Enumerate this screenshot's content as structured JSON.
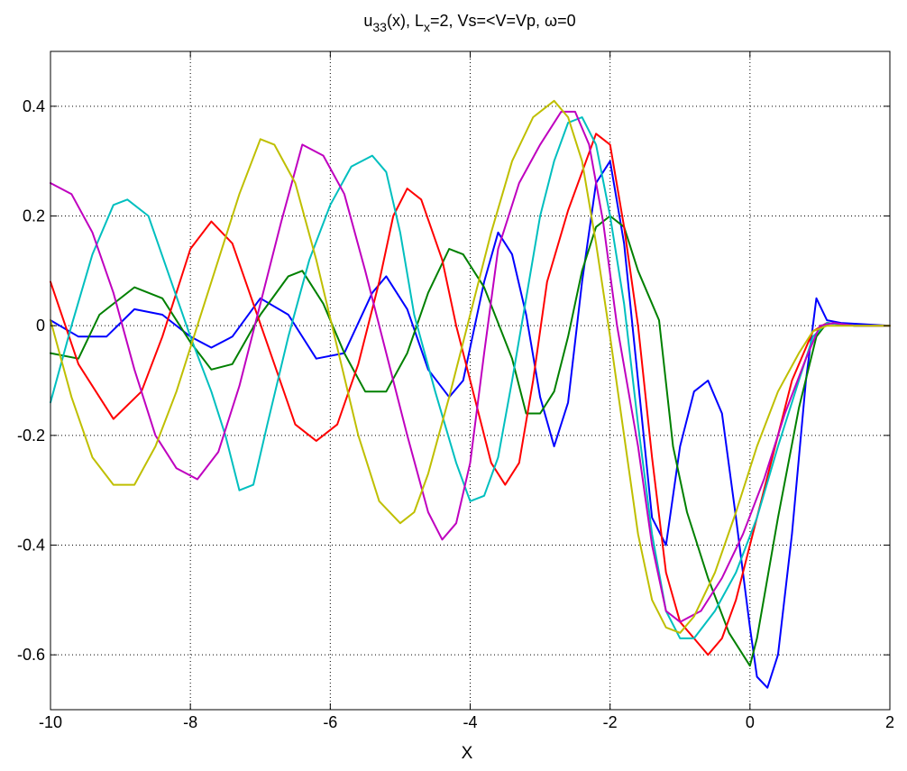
{
  "chart_data": {
    "type": "line",
    "title_parts": {
      "u": "u",
      "u_sub": "33",
      "mid": "(x), L",
      "l_sub": "x",
      "rest": "=2,  Vs=<V=Vp, ω=0"
    },
    "xlabel": "X",
    "ylabel": "",
    "xlim": [
      -10,
      2
    ],
    "ylim": [
      -0.7,
      0.5
    ],
    "xticks": [
      -10,
      -8,
      -6,
      -4,
      -2,
      0,
      2
    ],
    "xtick_labels": [
      "-10",
      "-8",
      "-6",
      "-4",
      "-2",
      "0",
      "2"
    ],
    "yticks": [
      -0.6,
      -0.4,
      -0.2,
      0,
      0.2,
      0.4
    ],
    "ytick_labels": [
      "-0.6",
      "-0.4",
      "-0.2",
      "0",
      "0.2",
      "0.4"
    ],
    "grid": true,
    "series": [
      {
        "color": "#0000FF",
        "points": [
          [
            -10,
            0.01
          ],
          [
            -9.6,
            -0.02
          ],
          [
            -9.2,
            -0.02
          ],
          [
            -8.8,
            0.03
          ],
          [
            -8.4,
            0.02
          ],
          [
            -8.0,
            -0.02
          ],
          [
            -7.7,
            -0.04
          ],
          [
            -7.4,
            -0.02
          ],
          [
            -7.0,
            0.05
          ],
          [
            -6.6,
            0.02
          ],
          [
            -6.2,
            -0.06
          ],
          [
            -5.8,
            -0.05
          ],
          [
            -5.4,
            0.06
          ],
          [
            -5.2,
            0.09
          ],
          [
            -4.9,
            0.03
          ],
          [
            -4.6,
            -0.08
          ],
          [
            -4.3,
            -0.13
          ],
          [
            -4.1,
            -0.1
          ],
          [
            -3.8,
            0.08
          ],
          [
            -3.6,
            0.17
          ],
          [
            -3.4,
            0.13
          ],
          [
            -3.2,
            0.02
          ],
          [
            -3.0,
            -0.13
          ],
          [
            -2.8,
            -0.22
          ],
          [
            -2.6,
            -0.14
          ],
          [
            -2.4,
            0.08
          ],
          [
            -2.2,
            0.26
          ],
          [
            -2.0,
            0.3
          ],
          [
            -1.8,
            0.15
          ],
          [
            -1.6,
            -0.1
          ],
          [
            -1.4,
            -0.35
          ],
          [
            -1.2,
            -0.4
          ],
          [
            -1.0,
            -0.22
          ],
          [
            -0.8,
            -0.12
          ],
          [
            -0.6,
            -0.1
          ],
          [
            -0.4,
            -0.16
          ],
          [
            -0.2,
            -0.35
          ],
          [
            0.0,
            -0.55
          ],
          [
            0.1,
            -0.64
          ],
          [
            0.25,
            -0.66
          ],
          [
            0.4,
            -0.6
          ],
          [
            0.6,
            -0.38
          ],
          [
            0.8,
            -0.1
          ],
          [
            0.95,
            0.05
          ],
          [
            1.1,
            0.01
          ],
          [
            1.3,
            0.005
          ],
          [
            2.0,
            0.0
          ]
        ]
      },
      {
        "color": "#008000",
        "points": [
          [
            -10,
            -0.05
          ],
          [
            -9.6,
            -0.06
          ],
          [
            -9.3,
            0.02
          ],
          [
            -8.8,
            0.07
          ],
          [
            -8.4,
            0.05
          ],
          [
            -8.0,
            -0.03
          ],
          [
            -7.7,
            -0.08
          ],
          [
            -7.4,
            -0.07
          ],
          [
            -7.0,
            0.02
          ],
          [
            -6.6,
            0.09
          ],
          [
            -6.4,
            0.1
          ],
          [
            -6.1,
            0.04
          ],
          [
            -5.8,
            -0.05
          ],
          [
            -5.5,
            -0.12
          ],
          [
            -5.2,
            -0.12
          ],
          [
            -4.9,
            -0.05
          ],
          [
            -4.6,
            0.06
          ],
          [
            -4.3,
            0.14
          ],
          [
            -4.1,
            0.13
          ],
          [
            -3.8,
            0.07
          ],
          [
            -3.4,
            -0.06
          ],
          [
            -3.2,
            -0.16
          ],
          [
            -3.0,
            -0.16
          ],
          [
            -2.8,
            -0.12
          ],
          [
            -2.6,
            -0.02
          ],
          [
            -2.4,
            0.1
          ],
          [
            -2.2,
            0.18
          ],
          [
            -2.0,
            0.2
          ],
          [
            -1.8,
            0.18
          ],
          [
            -1.6,
            0.1
          ],
          [
            -1.3,
            0.01
          ],
          [
            -1.1,
            -0.22
          ],
          [
            -0.9,
            -0.34
          ],
          [
            -0.6,
            -0.46
          ],
          [
            -0.3,
            -0.56
          ],
          [
            -0.1,
            -0.6
          ],
          [
            0.0,
            -0.62
          ],
          [
            0.1,
            -0.57
          ],
          [
            0.4,
            -0.35
          ],
          [
            0.7,
            -0.15
          ],
          [
            0.95,
            -0.02
          ],
          [
            1.1,
            0.005
          ],
          [
            1.5,
            0.0
          ],
          [
            2.0,
            0.0
          ]
        ]
      },
      {
        "color": "#FF0000",
        "points": [
          [
            -10,
            0.08
          ],
          [
            -9.6,
            -0.07
          ],
          [
            -9.1,
            -0.17
          ],
          [
            -8.7,
            -0.12
          ],
          [
            -8.4,
            -0.02
          ],
          [
            -8.0,
            0.14
          ],
          [
            -7.7,
            0.19
          ],
          [
            -7.4,
            0.15
          ],
          [
            -7.1,
            0.04
          ],
          [
            -6.8,
            -0.07
          ],
          [
            -6.5,
            -0.18
          ],
          [
            -6.2,
            -0.21
          ],
          [
            -5.9,
            -0.18
          ],
          [
            -5.6,
            -0.07
          ],
          [
            -5.3,
            0.08
          ],
          [
            -5.1,
            0.2
          ],
          [
            -4.9,
            0.25
          ],
          [
            -4.7,
            0.23
          ],
          [
            -4.4,
            0.12
          ],
          [
            -4.2,
            0.0
          ],
          [
            -3.9,
            -0.15
          ],
          [
            -3.7,
            -0.25
          ],
          [
            -3.5,
            -0.29
          ],
          [
            -3.3,
            -0.25
          ],
          [
            -3.1,
            -0.1
          ],
          [
            -2.9,
            0.08
          ],
          [
            -2.6,
            0.21
          ],
          [
            -2.4,
            0.28
          ],
          [
            -2.2,
            0.35
          ],
          [
            -2.0,
            0.33
          ],
          [
            -1.8,
            0.18
          ],
          [
            -1.6,
            0.0
          ],
          [
            -1.4,
            -0.24
          ],
          [
            -1.2,
            -0.45
          ],
          [
            -1.0,
            -0.54
          ],
          [
            -0.8,
            -0.57
          ],
          [
            -0.6,
            -0.6
          ],
          [
            -0.4,
            -0.57
          ],
          [
            -0.2,
            -0.5
          ],
          [
            0.0,
            -0.4
          ],
          [
            0.3,
            -0.25
          ],
          [
            0.6,
            -0.1
          ],
          [
            0.9,
            -0.01
          ],
          [
            1.1,
            0.005
          ],
          [
            1.5,
            0.0
          ],
          [
            2.0,
            0.0
          ]
        ]
      },
      {
        "color": "#00BFBF",
        "points": [
          [
            -10,
            -0.14
          ],
          [
            -9.7,
            0.0
          ],
          [
            -9.4,
            0.13
          ],
          [
            -9.1,
            0.22
          ],
          [
            -8.9,
            0.23
          ],
          [
            -8.6,
            0.2
          ],
          [
            -8.3,
            0.09
          ],
          [
            -8.0,
            -0.02
          ],
          [
            -7.7,
            -0.12
          ],
          [
            -7.5,
            -0.2
          ],
          [
            -7.3,
            -0.3
          ],
          [
            -7.1,
            -0.29
          ],
          [
            -6.9,
            -0.18
          ],
          [
            -6.6,
            -0.02
          ],
          [
            -6.3,
            0.12
          ],
          [
            -6.0,
            0.22
          ],
          [
            -5.7,
            0.29
          ],
          [
            -5.4,
            0.31
          ],
          [
            -5.2,
            0.28
          ],
          [
            -5.0,
            0.17
          ],
          [
            -4.8,
            0.02
          ],
          [
            -4.5,
            -0.12
          ],
          [
            -4.2,
            -0.25
          ],
          [
            -4.0,
            -0.32
          ],
          [
            -3.8,
            -0.31
          ],
          [
            -3.6,
            -0.24
          ],
          [
            -3.4,
            -0.1
          ],
          [
            -3.2,
            0.05
          ],
          [
            -3.0,
            0.2
          ],
          [
            -2.8,
            0.3
          ],
          [
            -2.6,
            0.37
          ],
          [
            -2.4,
            0.38
          ],
          [
            -2.2,
            0.33
          ],
          [
            -2.0,
            0.2
          ],
          [
            -1.8,
            0.04
          ],
          [
            -1.6,
            -0.18
          ],
          [
            -1.4,
            -0.38
          ],
          [
            -1.2,
            -0.52
          ],
          [
            -1.0,
            -0.57
          ],
          [
            -0.8,
            -0.57
          ],
          [
            -0.5,
            -0.52
          ],
          [
            -0.2,
            -0.45
          ],
          [
            0.1,
            -0.35
          ],
          [
            0.4,
            -0.22
          ],
          [
            0.7,
            -0.1
          ],
          [
            0.9,
            -0.02
          ],
          [
            1.1,
            0.005
          ],
          [
            1.5,
            0.0
          ],
          [
            2.0,
            0.0
          ]
        ]
      },
      {
        "color": "#BF00BF",
        "points": [
          [
            -10,
            0.26
          ],
          [
            -9.7,
            0.24
          ],
          [
            -9.4,
            0.17
          ],
          [
            -9.1,
            0.06
          ],
          [
            -8.8,
            -0.08
          ],
          [
            -8.5,
            -0.2
          ],
          [
            -8.2,
            -0.26
          ],
          [
            -7.9,
            -0.28
          ],
          [
            -7.6,
            -0.23
          ],
          [
            -7.3,
            -0.11
          ],
          [
            -7.0,
            0.04
          ],
          [
            -6.7,
            0.19
          ],
          [
            -6.4,
            0.33
          ],
          [
            -6.1,
            0.31
          ],
          [
            -5.8,
            0.24
          ],
          [
            -5.5,
            0.1
          ],
          [
            -5.2,
            -0.05
          ],
          [
            -4.9,
            -0.2
          ],
          [
            -4.6,
            -0.34
          ],
          [
            -4.4,
            -0.39
          ],
          [
            -4.2,
            -0.36
          ],
          [
            -4.0,
            -0.25
          ],
          [
            -3.8,
            -0.05
          ],
          [
            -3.6,
            0.14
          ],
          [
            -3.3,
            0.26
          ],
          [
            -3.0,
            0.33
          ],
          [
            -2.7,
            0.39
          ],
          [
            -2.5,
            0.39
          ],
          [
            -2.3,
            0.33
          ],
          [
            -2.1,
            0.19
          ],
          [
            -1.9,
            0.0
          ],
          [
            -1.6,
            -0.22
          ],
          [
            -1.4,
            -0.4
          ],
          [
            -1.2,
            -0.52
          ],
          [
            -1.0,
            -0.54
          ],
          [
            -0.7,
            -0.52
          ],
          [
            -0.4,
            -0.46
          ],
          [
            -0.1,
            -0.38
          ],
          [
            0.2,
            -0.28
          ],
          [
            0.5,
            -0.16
          ],
          [
            0.8,
            -0.06
          ],
          [
            1.0,
            0.0
          ],
          [
            1.2,
            0.005
          ],
          [
            1.5,
            0.0
          ],
          [
            2.0,
            0.0
          ]
        ]
      },
      {
        "color": "#BFBF00",
        "points": [
          [
            -10,
            0.01
          ],
          [
            -9.7,
            -0.13
          ],
          [
            -9.4,
            -0.24
          ],
          [
            -9.1,
            -0.29
          ],
          [
            -8.8,
            -0.29
          ],
          [
            -8.5,
            -0.22
          ],
          [
            -8.2,
            -0.12
          ],
          [
            -7.9,
            0.0
          ],
          [
            -7.6,
            0.12
          ],
          [
            -7.3,
            0.24
          ],
          [
            -7.0,
            0.34
          ],
          [
            -6.8,
            0.33
          ],
          [
            -6.5,
            0.26
          ],
          [
            -6.2,
            0.12
          ],
          [
            -5.9,
            -0.04
          ],
          [
            -5.6,
            -0.2
          ],
          [
            -5.3,
            -0.32
          ],
          [
            -5.0,
            -0.36
          ],
          [
            -4.8,
            -0.34
          ],
          [
            -4.6,
            -0.27
          ],
          [
            -4.3,
            -0.13
          ],
          [
            -4.0,
            0.02
          ],
          [
            -3.7,
            0.17
          ],
          [
            -3.4,
            0.3
          ],
          [
            -3.1,
            0.38
          ],
          [
            -2.8,
            0.41
          ],
          [
            -2.6,
            0.38
          ],
          [
            -2.4,
            0.3
          ],
          [
            -2.2,
            0.15
          ],
          [
            -2.0,
            -0.02
          ],
          [
            -1.8,
            -0.2
          ],
          [
            -1.6,
            -0.38
          ],
          [
            -1.4,
            -0.5
          ],
          [
            -1.2,
            -0.55
          ],
          [
            -1.0,
            -0.56
          ],
          [
            -0.8,
            -0.53
          ],
          [
            -0.5,
            -0.45
          ],
          [
            -0.2,
            -0.34
          ],
          [
            0.1,
            -0.22
          ],
          [
            0.4,
            -0.12
          ],
          [
            0.7,
            -0.05
          ],
          [
            0.9,
            -0.01
          ],
          [
            1.1,
            0.0
          ],
          [
            1.5,
            0.0
          ],
          [
            2.0,
            0.0
          ]
        ]
      }
    ]
  }
}
